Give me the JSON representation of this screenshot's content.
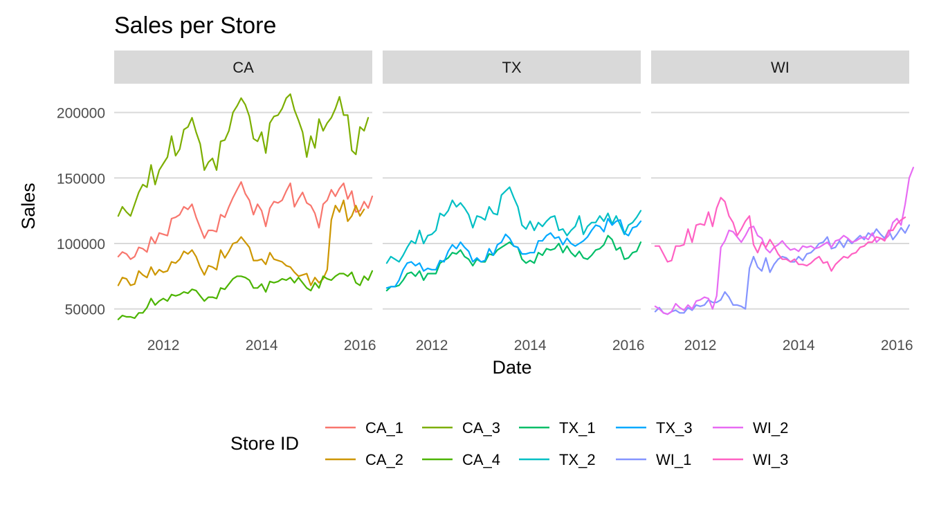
{
  "chart_data": {
    "type": "line",
    "title": "Sales per Store",
    "xlabel": "Date",
    "ylabel": "Sales",
    "legend_title": "Store ID",
    "legend_position": "bottom",
    "facets": [
      "CA",
      "TX",
      "WI"
    ],
    "xlim": [
      "2011-01",
      "2016-04"
    ],
    "ylim": [
      35000,
      222000
    ],
    "x_ticks": [
      2012,
      2014,
      2016
    ],
    "y_ticks": [
      50000,
      100000,
      150000,
      200000
    ],
    "y_tick_labels": [
      "50000",
      "100000",
      "150000",
      "200000"
    ],
    "grid": true,
    "x_start": "2011-02",
    "x_step": "month",
    "series": [
      {
        "name": "CA_1",
        "facet": "CA",
        "color": "#F8766D",
        "values": [
          90000,
          93500,
          92000,
          88000,
          90000,
          97000,
          96000,
          93500,
          105000,
          100000,
          108000,
          107000,
          106000,
          119000,
          120000,
          122000,
          128000,
          126000,
          130000,
          120000,
          112000,
          104000,
          110000,
          110000,
          109000,
          122000,
          120000,
          128000,
          135000,
          141000,
          147000,
          138000,
          133000,
          122000,
          130000,
          125000,
          113000,
          127000,
          132000,
          131000,
          133000,
          140000,
          146000,
          128000,
          134000,
          139000,
          131000,
          129000,
          123000,
          112000,
          130000,
          133000,
          141000,
          136000,
          142000,
          146000,
          134000,
          140000,
          124000,
          125000,
          132000,
          127000,
          136000
        ]
      },
      {
        "name": "CA_2",
        "facet": "CA",
        "color": "#CD9600",
        "values": [
          68000,
          74000,
          73000,
          68000,
          69000,
          79000,
          76000,
          74000,
          82000,
          76000,
          80000,
          78000,
          79000,
          86000,
          85000,
          88000,
          94000,
          92000,
          95000,
          90000,
          82000,
          76000,
          83000,
          82000,
          80000,
          95000,
          89000,
          94000,
          100000,
          101000,
          105000,
          101000,
          97000,
          87000,
          87000,
          88000,
          84000,
          93000,
          88000,
          87000,
          86000,
          83000,
          82000,
          78000,
          75000,
          76000,
          77000,
          68000,
          74000,
          70000,
          73000,
          80000,
          118000,
          129000,
          124000,
          133000,
          117000,
          121000,
          129000,
          121000,
          126000
        ]
      },
      {
        "name": "CA_3",
        "facet": "CA",
        "color": "#7CAE00",
        "values": [
          121000,
          128000,
          124000,
          121000,
          130000,
          139000,
          145000,
          143000,
          160000,
          145000,
          156000,
          161000,
          166000,
          182000,
          167000,
          172000,
          187000,
          189000,
          196000,
          185000,
          176000,
          156000,
          162000,
          165000,
          156000,
          178000,
          179000,
          186000,
          200000,
          205000,
          211000,
          206000,
          197000,
          180000,
          178000,
          185000,
          169000,
          192000,
          197000,
          198000,
          203000,
          211000,
          214000,
          202000,
          194000,
          185000,
          166000,
          182000,
          173000,
          195000,
          186000,
          192000,
          196000,
          203000,
          212000,
          198000,
          198000,
          171000,
          168000,
          189000,
          186000,
          196000
        ]
      },
      {
        "name": "CA_4",
        "facet": "CA",
        "color": "#4CB400",
        "values": [
          42000,
          45000,
          44000,
          44000,
          43000,
          47000,
          47000,
          51000,
          58000,
          53000,
          56000,
          58000,
          56000,
          61000,
          60000,
          61000,
          63000,
          62000,
          65000,
          64000,
          60000,
          56000,
          59000,
          59000,
          58000,
          66000,
          65000,
          69000,
          73000,
          75000,
          75000,
          74000,
          72000,
          66000,
          66000,
          69000,
          63000,
          71000,
          70000,
          71000,
          73000,
          72000,
          74000,
          70000,
          74000,
          70000,
          66000,
          64000,
          70000,
          66000,
          75000,
          73000,
          72000,
          75000,
          77000,
          77000,
          75000,
          78000,
          70000,
          68000,
          75000,
          72000,
          79000
        ]
      },
      {
        "name": "TX_1",
        "facet": "TX",
        "color": "#00BE67",
        "values": [
          64000,
          67000,
          67000,
          68000,
          72000,
          77000,
          78000,
          75000,
          79000,
          72000,
          77000,
          77000,
          77000,
          85000,
          87000,
          89000,
          93000,
          92000,
          95000,
          90000,
          88000,
          83000,
          88000,
          86000,
          86000,
          92000,
          91000,
          95000,
          97000,
          99000,
          101000,
          98000,
          97000,
          88000,
          85000,
          87000,
          85000,
          93000,
          91000,
          96000,
          95000,
          96000,
          100000,
          93000,
          98000,
          93000,
          90000,
          94000,
          89000,
          88000,
          91000,
          95000,
          96000,
          99000,
          106000,
          103000,
          95000,
          97000,
          88000,
          89000,
          93000,
          94000,
          101000
        ]
      },
      {
        "name": "TX_2",
        "facet": "TX",
        "color": "#00BFC4",
        "values": [
          85000,
          90000,
          88000,
          86000,
          91000,
          97000,
          102000,
          100000,
          110000,
          100000,
          106000,
          107000,
          110000,
          123000,
          121000,
          125000,
          133000,
          128000,
          131000,
          127000,
          122000,
          112000,
          121000,
          120000,
          118000,
          128000,
          123000,
          122000,
          137000,
          140000,
          143000,
          135000,
          128000,
          114000,
          111000,
          117000,
          110000,
          116000,
          113000,
          117000,
          120000,
          121000,
          110000,
          111000,
          106000,
          110000,
          113000,
          121000,
          107000,
          113000,
          116000,
          116000,
          121000,
          117000,
          123000,
          115000,
          121000,
          114000,
          107000,
          114000,
          116000,
          120000,
          125000
        ]
      },
      {
        "name": "TX_3",
        "facet": "TX",
        "color": "#00A9FF",
        "values": [
          66000,
          67000,
          67000,
          72000,
          80000,
          85000,
          86000,
          83000,
          85000,
          79000,
          81000,
          80000,
          80000,
          87000,
          86000,
          94000,
          99000,
          96000,
          101000,
          97000,
          94000,
          86000,
          89000,
          86000,
          87000,
          96000,
          91000,
          99000,
          101000,
          107000,
          104000,
          98000,
          97000,
          92000,
          92000,
          93000,
          93000,
          102000,
          102000,
          106000,
          108000,
          104000,
          105000,
          99000,
          104000,
          100000,
          98000,
          100000,
          102000,
          105000,
          110000,
          114000,
          113000,
          109000,
          119000,
          114000,
          117000,
          118000,
          108000,
          106000,
          112000,
          113000,
          117000
        ]
      },
      {
        "name": "WI_1",
        "facet": "WI",
        "color": "#8494FF",
        "values": [
          48000,
          51000,
          47000,
          46000,
          48000,
          49000,
          47000,
          47000,
          51000,
          49000,
          53000,
          52000,
          53000,
          57000,
          55000,
          55000,
          57000,
          63000,
          59000,
          53000,
          53000,
          52000,
          50000,
          81000,
          90000,
          82000,
          79000,
          89000,
          78000,
          84000,
          88000,
          90000,
          89000,
          86000,
          86000,
          90000,
          87000,
          92000,
          93000,
          96000,
          100000,
          101000,
          105000,
          96000,
          97000,
          102000,
          97000,
          103000,
          100000,
          103000,
          106000,
          103000,
          108000,
          106000,
          111000,
          107000,
          104000,
          110000,
          103000,
          107000,
          112000,
          108000,
          114000
        ]
      },
      {
        "name": "WI_2",
        "facet": "WI",
        "color": "#E76BF3",
        "values": [
          52000,
          50000,
          47000,
          46000,
          48000,
          54000,
          51000,
          49000,
          53000,
          50000,
          56000,
          57000,
          59000,
          58000,
          50000,
          60000,
          97000,
          102000,
          110000,
          109000,
          105000,
          101000,
          106000,
          112000,
          113000,
          106000,
          104000,
          96000,
          93000,
          97000,
          99000,
          102000,
          98000,
          95000,
          96000,
          94000,
          98000,
          97000,
          98000,
          96000,
          97000,
          99000,
          101000,
          97000,
          102000,
          103000,
          106000,
          104000,
          101000,
          102000,
          104000,
          105000,
          103000,
          108000,
          101000,
          104000,
          103000,
          106000,
          116000,
          119000,
          114000,
          130000,
          150000,
          158000
        ]
      },
      {
        "name": "WI_3",
        "facet": "WI",
        "color": "#FF61C3",
        "values": [
          98000,
          98000,
          92000,
          86000,
          87000,
          98000,
          98000,
          99000,
          111000,
          101000,
          114000,
          115000,
          114000,
          124000,
          113000,
          127000,
          135000,
          132000,
          121000,
          116000,
          106000,
          111000,
          117000,
          121000,
          99000,
          93000,
          101000,
          97000,
          103000,
          98000,
          92000,
          88000,
          88000,
          86000,
          88000,
          84000,
          84000,
          83000,
          85000,
          88000,
          90000,
          85000,
          86000,
          79000,
          84000,
          87000,
          90000,
          89000,
          92000,
          93000,
          97000,
          98000,
          101000,
          101000,
          105000,
          104000,
          102000,
          110000,
          110000,
          115000,
          118000,
          120000
        ]
      }
    ]
  }
}
